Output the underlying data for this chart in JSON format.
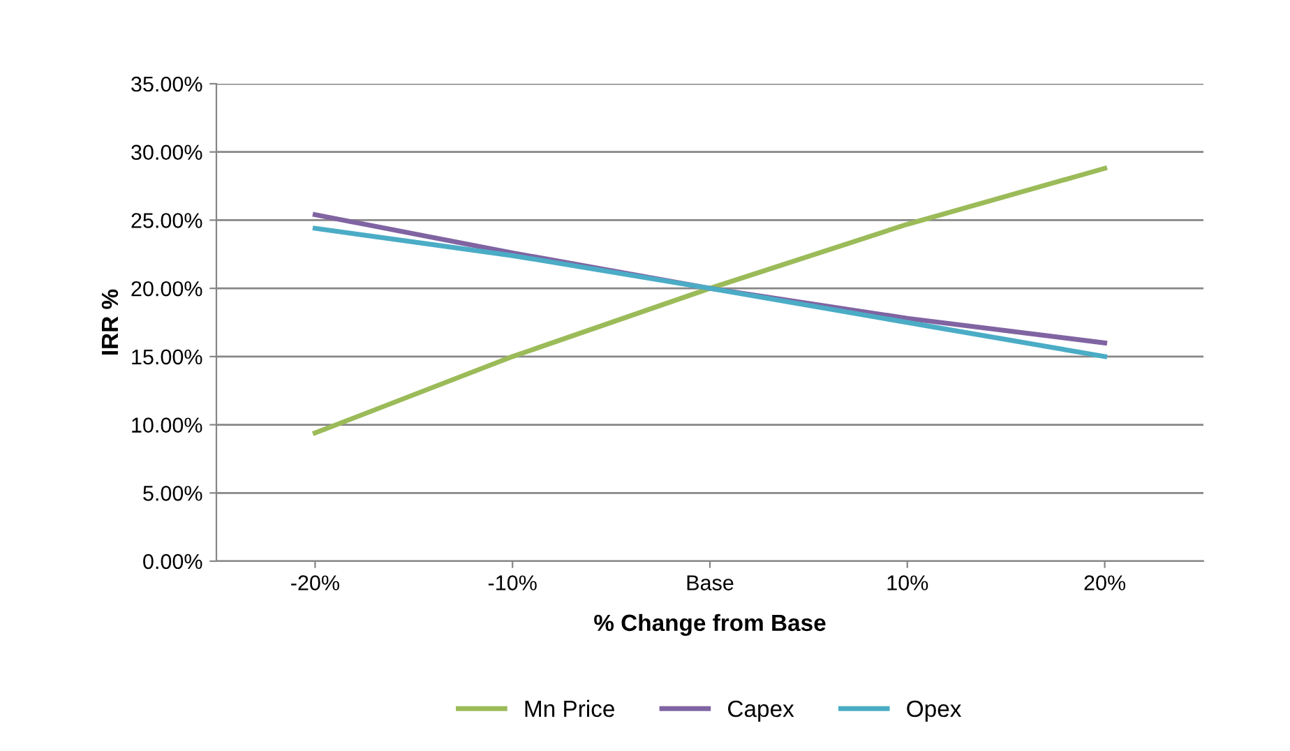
{
  "chart_data": {
    "type": "line",
    "xlabel": "% Change from Base",
    "ylabel": "IRR %",
    "categories": [
      "-20%",
      "-10%",
      "Base",
      "10%",
      "20%"
    ],
    "series": [
      {
        "name": "Mn Price",
        "color": "#9bbb59",
        "values": [
          9.4,
          15.0,
          20.0,
          24.7,
          28.8
        ]
      },
      {
        "name": "Capex",
        "color": "#8064a2",
        "values": [
          25.4,
          22.6,
          20.0,
          17.8,
          16.0
        ]
      },
      {
        "name": "Opex",
        "color": "#4bacc6",
        "values": [
          24.4,
          22.4,
          20.0,
          17.5,
          15.0
        ]
      }
    ],
    "ylim": [
      0,
      35
    ],
    "yticks": [
      {
        "value": 0,
        "label": "0.00%"
      },
      {
        "value": 5,
        "label": "5.00%"
      },
      {
        "value": 10,
        "label": "10.00%"
      },
      {
        "value": 15,
        "label": "15.00%"
      },
      {
        "value": 20,
        "label": "20.00%"
      },
      {
        "value": 25,
        "label": "25.00%"
      },
      {
        "value": 30,
        "label": "30.00%"
      },
      {
        "value": 35,
        "label": "35.00%"
      }
    ],
    "grid": "y",
    "legend": "bottom",
    "marker": "none",
    "line_style": "solid"
  }
}
